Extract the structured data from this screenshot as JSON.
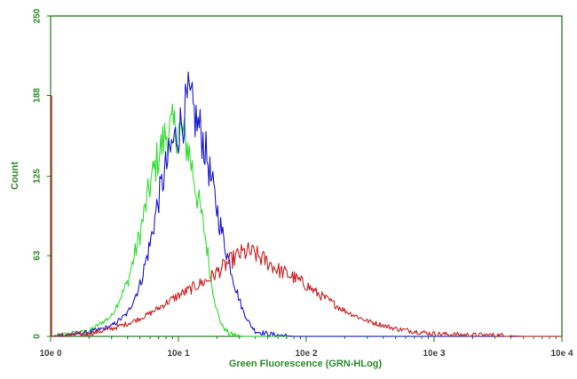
{
  "chart_data": {
    "type": "line",
    "xlabel": "Green Fluorescence (GRN-HLog)",
    "ylabel": "Count",
    "x_scale": "log",
    "xlim": [
      1,
      10000
    ],
    "ylim": [
      0,
      250
    ],
    "x_tick_labels": [
      "10e 0",
      "10e 1",
      "10e 2",
      "10e 3",
      "10e 4"
    ],
    "x_tick_values": [
      1,
      10,
      100,
      1000,
      10000
    ],
    "y_tick_labels": [
      "0",
      "63",
      "125",
      "188",
      "250"
    ],
    "y_tick_values": [
      0,
      63,
      125,
      188,
      250
    ],
    "grid": false,
    "colors": {
      "frame": "#1a7a1a",
      "axis_text": "#2e8b2e",
      "green_series": "#33dd33",
      "blue_series": "#1a1acc",
      "red_series": "#cc2222"
    },
    "series": [
      {
        "color": "green",
        "x": [
          1.0,
          2.0,
          3.0,
          4.0,
          5.0,
          6.0,
          7.0,
          8.0,
          9.0,
          10.0,
          11.0,
          12.0,
          13.0,
          14.0,
          15.0,
          16.0,
          17.0,
          18.0,
          20.0,
          22.0,
          25.0,
          28.0,
          32.0,
          40.0
        ],
        "y": [
          0,
          4,
          16,
          42,
          80,
          118,
          142,
          158,
          162,
          162,
          156,
          146,
          128,
          110,
          96,
          82,
          64,
          44,
          20,
          8,
          2,
          1,
          0,
          0
        ]
      },
      {
        "color": "blue",
        "x": [
          1.0,
          2.0,
          3.0,
          4.0,
          5.0,
          6.0,
          7.0,
          8.0,
          9.0,
          10.0,
          11.0,
          12.0,
          13.0,
          14.0,
          15.0,
          16.0,
          17.0,
          18.0,
          20.0,
          22.0,
          25.0,
          28.0,
          32.0,
          36.0,
          40.0,
          50.0,
          60.0,
          80.0,
          100.0
        ],
        "y": [
          0,
          3,
          8,
          18,
          40,
          72,
          108,
          132,
          150,
          160,
          172,
          186,
          176,
          166,
          160,
          148,
          136,
          122,
          100,
          80,
          58,
          38,
          20,
          10,
          4,
          2,
          1,
          0,
          0
        ]
      },
      {
        "color": "red",
        "x": [
          1.0,
          2.0,
          3.0,
          4.0,
          5.0,
          6.0,
          7.0,
          8.0,
          10.0,
          12.0,
          14.0,
          17.0,
          20.0,
          25.0,
          30.0,
          35.0,
          40.0,
          50.0,
          60.0,
          80.0,
          100.0,
          120.0,
          150.0,
          200.0,
          300.0,
          500.0,
          700.0,
          1000.0,
          2000.0,
          3000.0,
          5000.0,
          10000.0
        ],
        "y": [
          0,
          2,
          6,
          10,
          14,
          18,
          22,
          26,
          32,
          36,
          40,
          44,
          50,
          58,
          64,
          66,
          64,
          58,
          52,
          46,
          40,
          34,
          28,
          20,
          12,
          6,
          4,
          2,
          1,
          1,
          0,
          0
        ]
      }
    ]
  }
}
